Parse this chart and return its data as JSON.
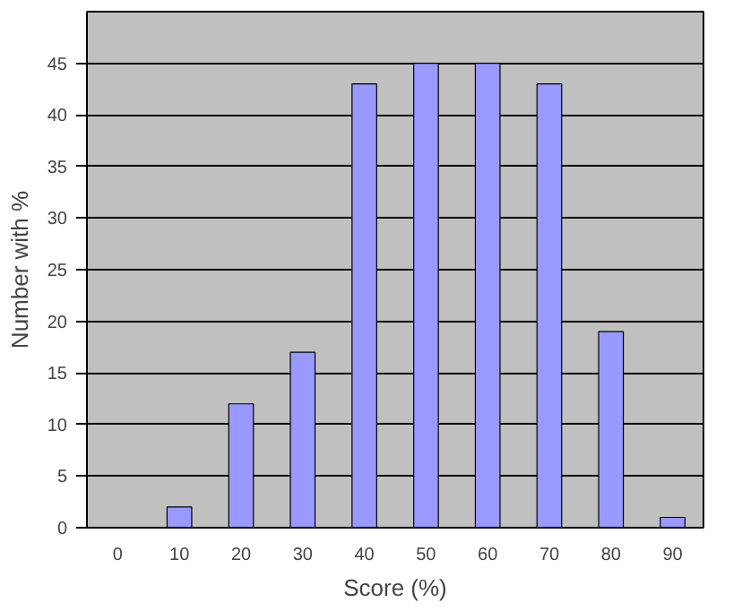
{
  "chart_data": {
    "type": "bar",
    "xlabel": "Score (%)",
    "ylabel": "Number with %",
    "categories": [
      "0",
      "10",
      "20",
      "30",
      "40",
      "50",
      "60",
      "70",
      "80",
      "90"
    ],
    "values": [
      0,
      2,
      12,
      17,
      43,
      45,
      45,
      43,
      19,
      1
    ],
    "color": "#9999ff",
    "ylim": [
      0,
      50
    ],
    "yticks": [
      0,
      5,
      10,
      15,
      20,
      25,
      30,
      35,
      40,
      45
    ],
    "grid": "y"
  }
}
